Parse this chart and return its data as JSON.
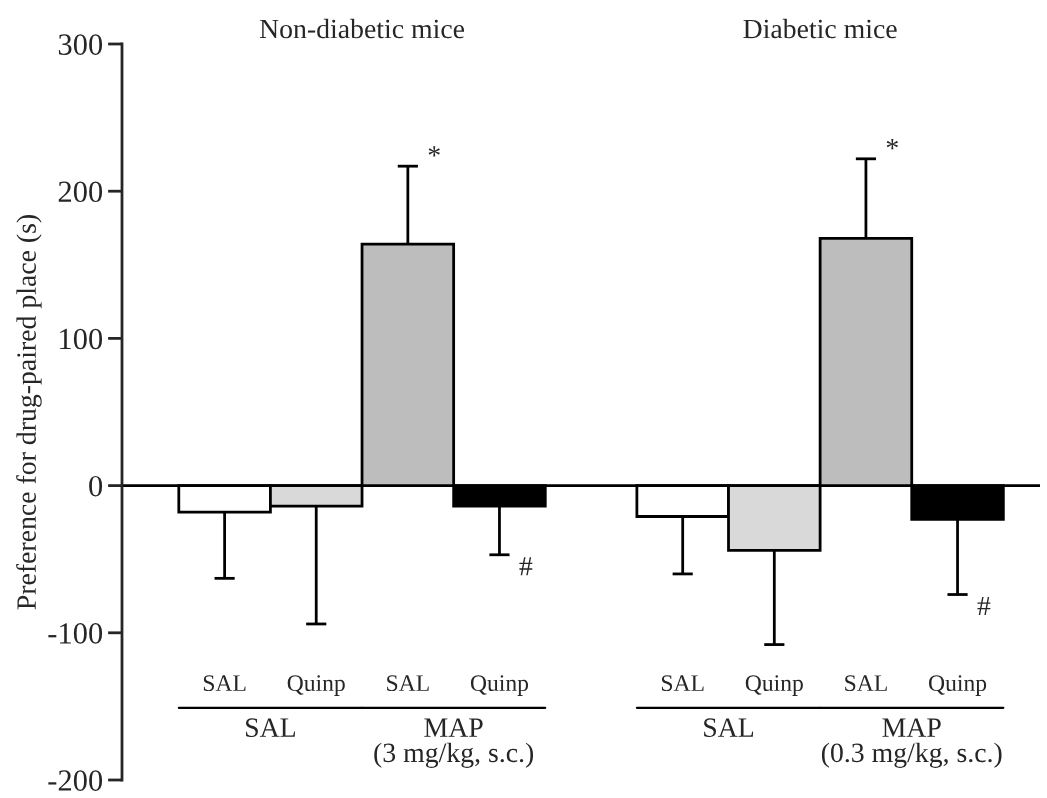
{
  "chart_data": {
    "type": "bar",
    "ylabel": "Preference for drug-paired place (s)",
    "categories": [
      "SAL",
      "Quinp",
      "SAL",
      "Quinp",
      null,
      "SAL",
      "Quinp",
      "SAL",
      "Quinp"
    ],
    "values": [
      -18,
      -14,
      164,
      -14,
      null,
      -21,
      -44,
      168,
      -23
    ],
    "errors": [
      [
        -63,
        -18
      ],
      [
        -94,
        -14
      ],
      [
        164,
        217
      ],
      [
        -47,
        -14
      ],
      null,
      [
        -60,
        -21
      ],
      [
        -108,
        -44
      ],
      [
        168,
        222
      ],
      [
        -74,
        -23
      ]
    ],
    "colors": [
      "#ffffff",
      "#d9d9d9",
      "#bdbdbd",
      "#000000",
      null,
      "#ffffff",
      "#d9d9d9",
      "#bdbdbd",
      "#000000"
    ],
    "ylim": [
      -200,
      300
    ],
    "yticks": [
      -200,
      -100,
      0,
      100,
      200,
      300
    ],
    "grid": false,
    "legend": false,
    "ref_lines": [
      {
        "axis": "y",
        "value": 0,
        "color": "#000000",
        "line_style": "solid"
      }
    ],
    "annotations": [
      "Non-diabetic mice",
      "Diabetic mice",
      "SAL",
      "MAP\n(3 mg/kg, s.c.)",
      "SAL",
      "MAP\n(0.3 mg/kg, s.c.)",
      "*",
      "#",
      "*",
      "#"
    ]
  }
}
